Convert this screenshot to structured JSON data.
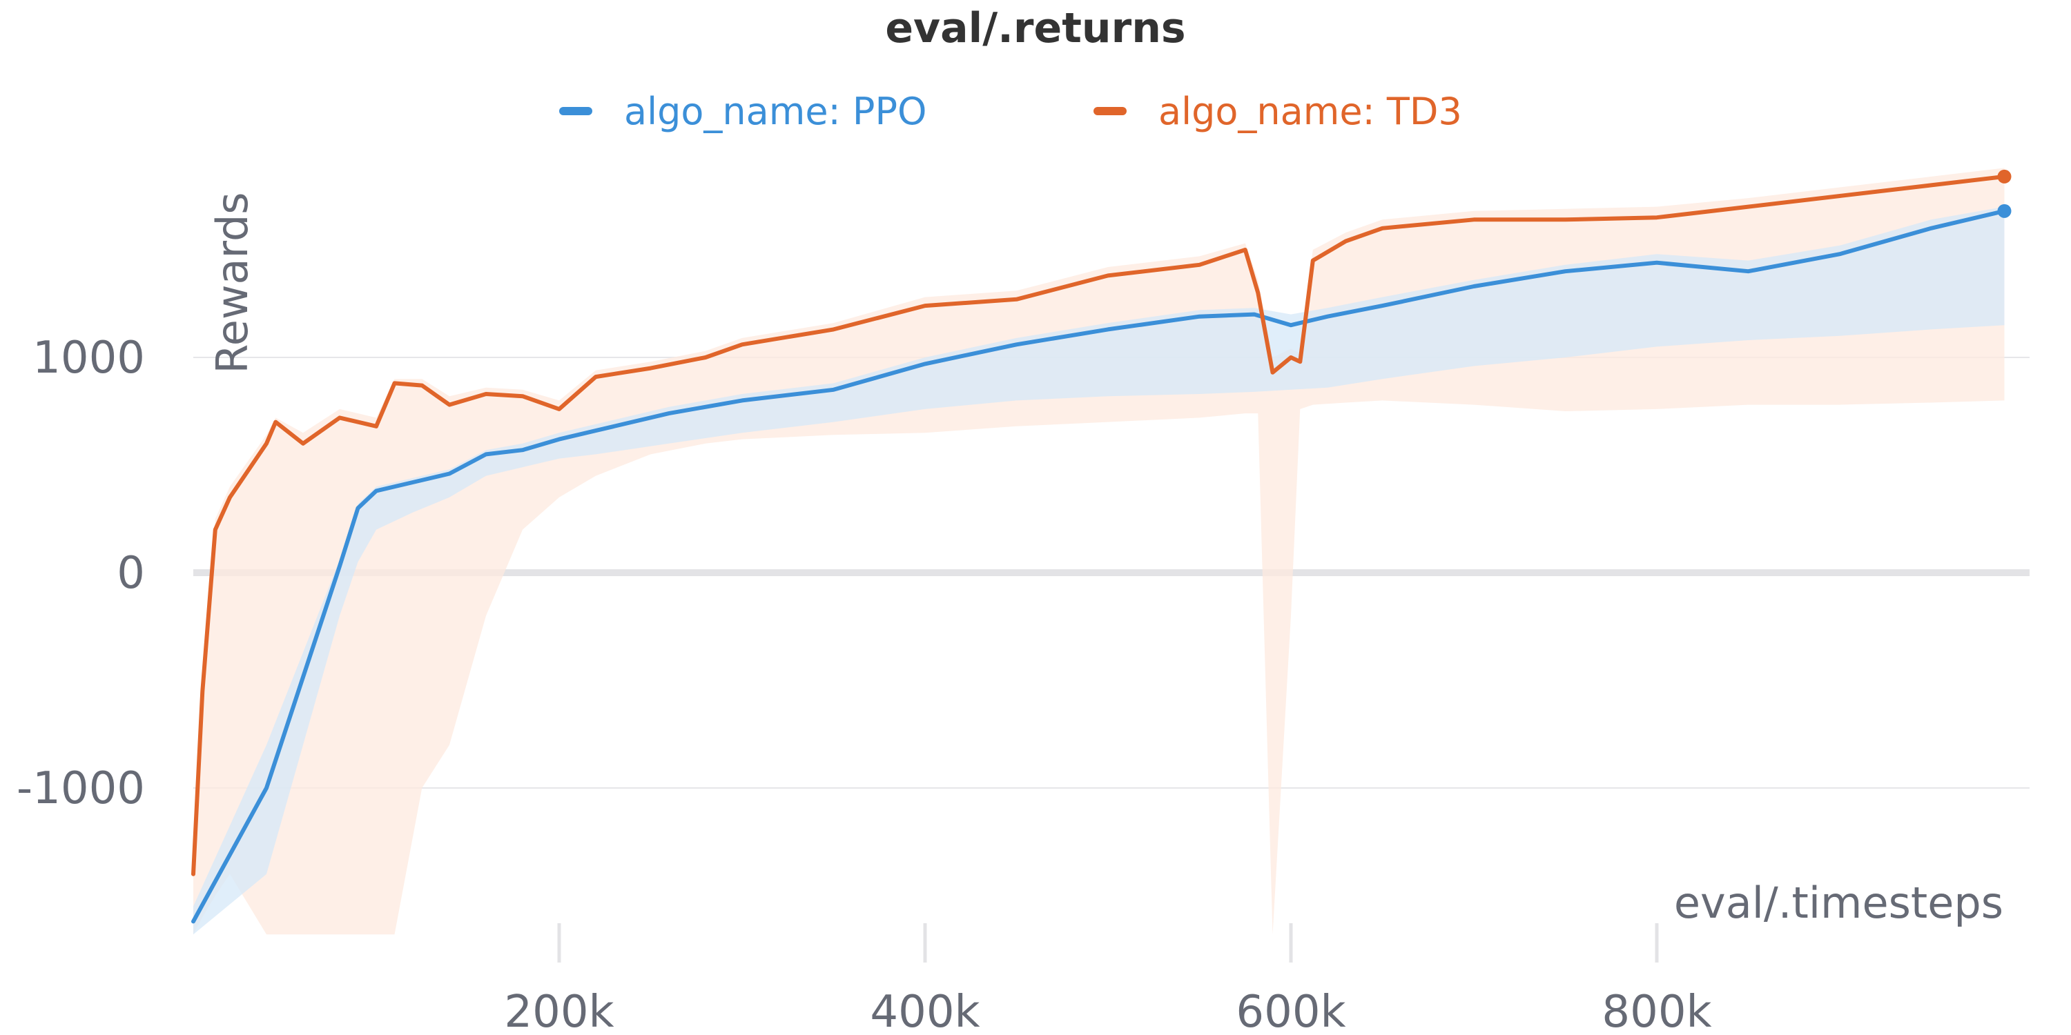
{
  "chart_data": {
    "type": "line",
    "title": "eval/.returns",
    "xlabel": "eval/.timesteps",
    "ylabel": "Rewards",
    "xlim": [
      0,
      1000000
    ],
    "ylim": [
      -1680,
      2000
    ],
    "xticks": [
      200000,
      400000,
      600000,
      800000
    ],
    "xtick_labels": [
      "200k",
      "400k",
      "600k",
      "800k"
    ],
    "yticks": [
      -1000,
      0,
      1000
    ],
    "ytick_labels": [
      "-1000",
      "0",
      "1000"
    ],
    "grid": true,
    "legend_position": "top",
    "series": [
      {
        "name": "algo_name: PPO",
        "color": "#3b8fd8",
        "band_color": "#d6e8f8",
        "x": [
          0,
          40000,
          80000,
          90000,
          100000,
          120000,
          140000,
          160000,
          180000,
          200000,
          220000,
          260000,
          300000,
          350000,
          400000,
          450000,
          500000,
          550000,
          580000,
          600000,
          620000,
          650000,
          700000,
          750000,
          800000,
          850000,
          900000,
          950000,
          990000
        ],
        "y": [
          -1620,
          -1000,
          30,
          300,
          380,
          420,
          460,
          550,
          570,
          620,
          660,
          740,
          800,
          850,
          970,
          1060,
          1130,
          1190,
          1200,
          1150,
          1190,
          1240,
          1330,
          1400,
          1440,
          1400,
          1480,
          1600,
          1680
        ],
        "lower": [
          -1680,
          -1400,
          -200,
          50,
          200,
          280,
          350,
          450,
          490,
          530,
          550,
          600,
          650,
          700,
          760,
          800,
          820,
          830,
          840,
          850,
          860,
          900,
          960,
          1000,
          1050,
          1080,
          1100,
          1130,
          1150
        ],
        "upper": [
          -1550,
          -800,
          60,
          320,
          400,
          440,
          480,
          570,
          600,
          650,
          690,
          770,
          830,
          880,
          1000,
          1090,
          1160,
          1220,
          1230,
          1200,
          1230,
          1280,
          1360,
          1430,
          1480,
          1450,
          1520,
          1640,
          1700
        ]
      },
      {
        "name": "algo_name: TD3",
        "color": "#e0652a",
        "band_color": "#fde9df",
        "x": [
          0,
          5000,
          12000,
          20000,
          40000,
          45000,
          60000,
          80000,
          100000,
          110000,
          125000,
          140000,
          160000,
          180000,
          200000,
          220000,
          250000,
          280000,
          300000,
          350000,
          400000,
          450000,
          500000,
          550000,
          575000,
          582000,
          590000,
          600000,
          605000,
          612000,
          630000,
          650000,
          700000,
          750000,
          800000,
          850000,
          900000,
          950000,
          990000
        ],
        "y": [
          -1400,
          -550,
          200,
          350,
          600,
          700,
          600,
          720,
          680,
          880,
          870,
          780,
          830,
          820,
          760,
          910,
          950,
          1000,
          1060,
          1130,
          1240,
          1270,
          1380,
          1430,
          1500,
          1300,
          930,
          1000,
          980,
          1450,
          1540,
          1600,
          1640,
          1640,
          1650,
          1700,
          1750,
          1800,
          1840
        ],
        "lower": [
          -1680,
          -1600,
          -1500,
          -1400,
          -1680,
          -1680,
          -1680,
          -1680,
          -1680,
          -1680,
          -1000,
          -800,
          -200,
          200,
          350,
          450,
          550,
          600,
          620,
          640,
          650,
          680,
          700,
          720,
          740,
          740,
          -1680,
          -200,
          760,
          780,
          790,
          800,
          780,
          750,
          760,
          780,
          780,
          790,
          800
        ],
        "upper": [
          -1300,
          -500,
          250,
          400,
          640,
          720,
          650,
          760,
          720,
          900,
          900,
          820,
          860,
          850,
          800,
          940,
          980,
          1030,
          1090,
          1160,
          1280,
          1310,
          1420,
          1470,
          1530,
          1360,
          1000,
          1040,
          1020,
          1500,
          1580,
          1640,
          1680,
          1690,
          1700,
          1740,
          1790,
          1840,
          1880
        ]
      }
    ]
  }
}
